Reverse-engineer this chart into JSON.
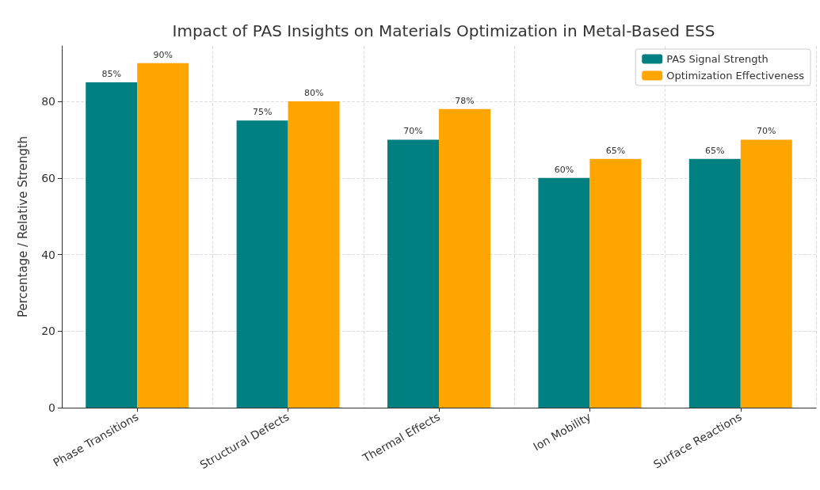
{
  "chart_data": {
    "type": "bar",
    "title": "Impact of PAS Insights on Materials Optimization in Metal-Based ESS",
    "ylabel": "Percentage / Relative Strength",
    "categories": [
      "Phase Transitions",
      "Structural Defects",
      "Thermal Effects",
      "Ion Mobility",
      "Surface Reactions"
    ],
    "series": [
      {
        "name": "PAS Signal Strength",
        "color": "#008080",
        "values": [
          85,
          75,
          70,
          60,
          65
        ],
        "value_labels": [
          "85%",
          "75%",
          "70%",
          "60%",
          "65%"
        ]
      },
      {
        "name": "Optimization Effectiveness",
        "color": "#ffa500",
        "values": [
          90,
          80,
          78,
          65,
          70
        ],
        "value_labels": [
          "90%",
          "80%",
          "78%",
          "65%",
          "70%"
        ]
      }
    ],
    "ylim": [
      0,
      94.5
    ],
    "yticks": [
      0,
      20,
      40,
      60,
      80
    ],
    "grid": true,
    "legend": "top right"
  }
}
